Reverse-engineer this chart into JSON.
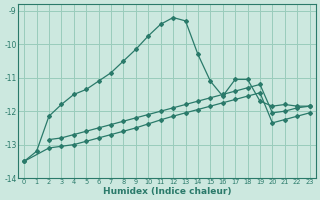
{
  "xlabel": "Humidex (Indice chaleur)",
  "background_color": "#cce8df",
  "grid_color": "#99ccbb",
  "line_color": "#2a7a6a",
  "xlim": [
    -0.5,
    23.5
  ],
  "ylim": [
    -14.0,
    -8.8
  ],
  "xticks": [
    0,
    1,
    2,
    3,
    4,
    5,
    6,
    7,
    8,
    9,
    10,
    11,
    12,
    13,
    14,
    15,
    16,
    17,
    18,
    19,
    20,
    21,
    22,
    23
  ],
  "yticks": [
    -14,
    -13,
    -12,
    -11,
    -10,
    -9
  ],
  "series1_x": [
    0,
    1,
    2,
    3,
    4,
    5,
    6,
    7,
    8,
    9,
    10,
    11,
    12,
    13,
    14,
    15,
    16,
    17,
    18,
    19,
    20,
    21,
    22,
    23
  ],
  "series1_y": [
    -13.5,
    -13.2,
    -12.15,
    -11.8,
    -11.5,
    -11.35,
    -11.1,
    -10.85,
    -10.5,
    -10.15,
    -9.75,
    -9.4,
    -9.2,
    -9.3,
    -10.3,
    -11.1,
    -11.55,
    -11.05,
    -11.05,
    -11.7,
    -11.85,
    -11.8,
    -11.85,
    -11.85
  ],
  "series2_x": [
    2,
    3,
    4,
    5,
    6,
    7,
    8,
    9,
    10,
    11,
    12,
    13,
    14,
    15,
    16,
    17,
    18,
    19,
    20,
    21,
    22,
    23
  ],
  "series2_y": [
    -12.85,
    -12.8,
    -12.7,
    -12.6,
    -12.5,
    -12.4,
    -12.3,
    -12.2,
    -12.1,
    -12.0,
    -11.9,
    -11.8,
    -11.7,
    -11.6,
    -11.5,
    -11.4,
    -11.3,
    -11.2,
    -12.05,
    -12.0,
    -11.9,
    -11.85
  ],
  "series3_x": [
    0,
    2,
    3,
    4,
    5,
    6,
    7,
    8,
    9,
    10,
    11,
    12,
    13,
    14,
    15,
    16,
    17,
    18,
    19,
    20,
    21,
    22,
    23
  ],
  "series3_y": [
    -13.5,
    -13.1,
    -13.05,
    -13.0,
    -12.9,
    -12.8,
    -12.7,
    -12.6,
    -12.5,
    -12.38,
    -12.26,
    -12.15,
    -12.05,
    -11.95,
    -11.85,
    -11.75,
    -11.65,
    -11.55,
    -11.45,
    -12.35,
    -12.25,
    -12.15,
    -12.05
  ]
}
